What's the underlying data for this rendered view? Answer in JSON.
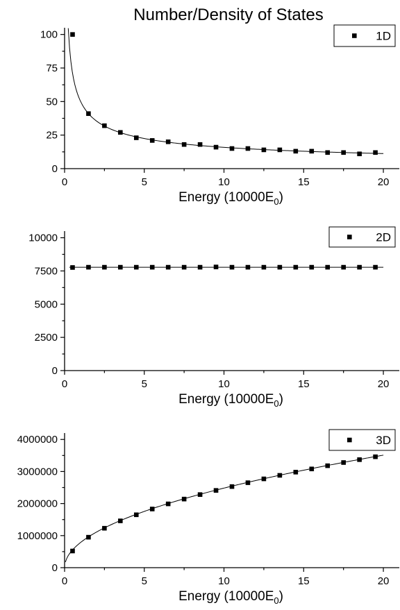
{
  "title": "Number/Density of States",
  "chart_data": [
    {
      "type": "scatter",
      "title": "Number/Density of States",
      "xlabel": "Energy (10000E",
      "xlabel_sub": "0",
      "xlabel_close": ")",
      "ylabel": "",
      "xlim": [
        0,
        21
      ],
      "ylim": [
        0,
        105
      ],
      "xticks": [
        0,
        5,
        10,
        15,
        20
      ],
      "yticks": [
        0,
        25,
        50,
        75,
        100
      ],
      "series": [
        {
          "name": "1D",
          "x": [
            0.5,
            1.5,
            2.5,
            3.5,
            4.5,
            5.5,
            6.5,
            7.5,
            8.5,
            9.5,
            10.5,
            11.5,
            12.5,
            13.5,
            14.5,
            15.5,
            16.5,
            17.5,
            18.5,
            19.5
          ],
          "y": [
            100,
            41,
            32,
            27,
            23,
            21,
            20,
            18,
            18,
            16,
            15,
            15,
            14,
            14,
            13,
            13,
            12,
            12,
            11,
            12
          ]
        }
      ],
      "fit": {
        "kind": "power",
        "a": 50.2,
        "b": -0.5,
        "x_start": 0.23,
        "x_end": 20
      },
      "legend": "top-right",
      "grid": false
    },
    {
      "type": "scatter",
      "xlabel": "Energy (10000E",
      "xlabel_sub": "0",
      "xlabel_close": ")",
      "ylabel": "",
      "xlim": [
        0,
        21
      ],
      "ylim": [
        0,
        10500
      ],
      "xticks": [
        0,
        5,
        10,
        15,
        20
      ],
      "yticks": [
        0,
        2500,
        5000,
        7500,
        10000
      ],
      "series": [
        {
          "name": "2D",
          "x": [
            0.5,
            1.5,
            2.5,
            3.5,
            4.5,
            5.5,
            6.5,
            7.5,
            8.5,
            9.5,
            10.5,
            11.5,
            12.5,
            13.5,
            14.5,
            15.5,
            16.5,
            17.5,
            18.5,
            19.5
          ],
          "y": [
            7760,
            7780,
            7780,
            7780,
            7780,
            7780,
            7780,
            7780,
            7780,
            7800,
            7780,
            7780,
            7780,
            7780,
            7780,
            7780,
            7780,
            7780,
            7780,
            7780
          ]
        }
      ],
      "fit": {
        "kind": "constant",
        "a": 7780,
        "x_start": 0.3,
        "x_end": 20
      },
      "legend": "top-right",
      "grid": false
    },
    {
      "type": "scatter",
      "xlabel": "Energy (10000E",
      "xlabel_sub": "0",
      "xlabel_close": ")",
      "ylabel": "",
      "xlim": [
        0,
        21
      ],
      "ylim": [
        0,
        4200000
      ],
      "xticks": [
        0,
        5,
        10,
        15,
        20
      ],
      "yticks": [
        0,
        1000000,
        2000000,
        3000000,
        4000000
      ],
      "series": [
        {
          "name": "3D",
          "x": [
            0.5,
            1.5,
            2.5,
            3.5,
            4.5,
            5.5,
            6.5,
            7.5,
            8.5,
            9.5,
            10.5,
            11.5,
            12.5,
            13.5,
            14.5,
            15.5,
            16.5,
            17.5,
            18.5,
            19.5
          ],
          "y": [
            520000,
            950000,
            1230000,
            1460000,
            1650000,
            1830000,
            1990000,
            2140000,
            2280000,
            2410000,
            2530000,
            2650000,
            2770000,
            2880000,
            2980000,
            3080000,
            3180000,
            3280000,
            3370000,
            3460000
          ]
        }
      ],
      "fit": {
        "kind": "power",
        "a": 785000,
        "b": 0.5,
        "x_start": 0.05,
        "x_end": 20
      },
      "legend": "top-right",
      "grid": false
    }
  ]
}
